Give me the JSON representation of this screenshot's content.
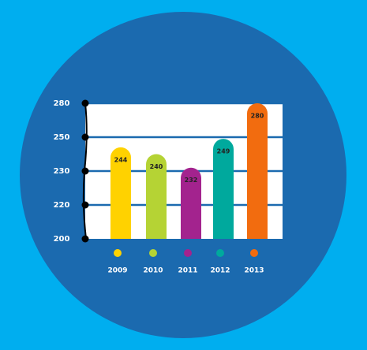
{
  "chart_data": {
    "type": "bar",
    "categories": [
      "2009",
      "2010",
      "2011",
      "2012",
      "2013"
    ],
    "series": [
      {
        "values": [
          244,
          240,
          232,
          249,
          280
        ],
        "colors": [
          "#ffd200",
          "#b5d334",
          "#a3238e",
          "#00a99d",
          "#f26c0f"
        ]
      }
    ],
    "ylim": [
      200,
      280
    ],
    "yticks": [
      200,
      220,
      230,
      250,
      280
    ],
    "grid": true
  }
}
